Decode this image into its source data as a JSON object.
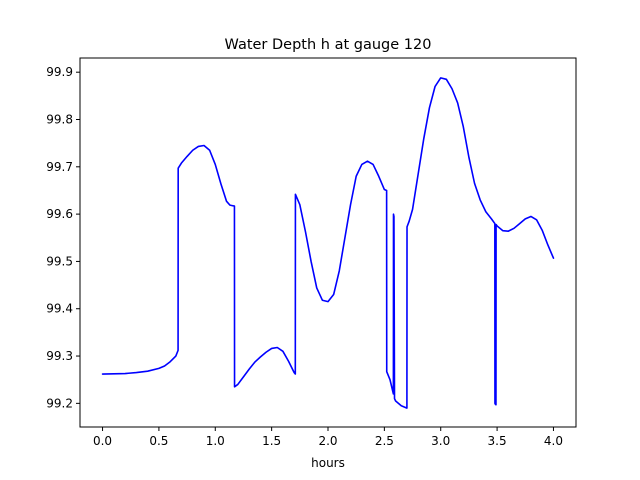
{
  "chart_data": {
    "type": "line",
    "title": "Water Depth h at gauge 120",
    "xlabel": "hours",
    "ylabel": "",
    "xlim": [
      -0.2,
      4.2
    ],
    "ylim": [
      99.15,
      99.93
    ],
    "xticks": [
      {
        "value": 0.0,
        "label": "0.0"
      },
      {
        "value": 0.5,
        "label": "0.5"
      },
      {
        "value": 1.0,
        "label": "1.0"
      },
      {
        "value": 1.5,
        "label": "1.5"
      },
      {
        "value": 2.0,
        "label": "2.0"
      },
      {
        "value": 2.5,
        "label": "2.5"
      },
      {
        "value": 3.0,
        "label": "3.0"
      },
      {
        "value": 3.5,
        "label": "3.5"
      },
      {
        "value": 4.0,
        "label": "4.0"
      }
    ],
    "yticks": [
      {
        "value": 99.2,
        "label": "99.2"
      },
      {
        "value": 99.3,
        "label": "99.3"
      },
      {
        "value": 99.4,
        "label": "99.4"
      },
      {
        "value": 99.5,
        "label": "99.5"
      },
      {
        "value": 99.6,
        "label": "99.6"
      },
      {
        "value": 99.7,
        "label": "99.7"
      },
      {
        "value": 99.8,
        "label": "99.8"
      },
      {
        "value": 99.9,
        "label": "99.9"
      }
    ],
    "grid": false,
    "legend": "none",
    "series": [
      {
        "color": "#0000ff",
        "x": [
          0.0,
          0.2,
          0.3,
          0.4,
          0.5,
          0.55,
          0.6,
          0.65,
          0.67,
          0.671,
          0.7,
          0.75,
          0.8,
          0.85,
          0.9,
          0.95,
          1.0,
          1.05,
          1.1,
          1.13,
          1.15,
          1.17,
          1.171,
          1.2,
          1.25,
          1.3,
          1.35,
          1.4,
          1.45,
          1.5,
          1.55,
          1.6,
          1.65,
          1.7,
          1.71,
          1.711,
          1.75,
          1.8,
          1.85,
          1.9,
          1.95,
          2.0,
          2.05,
          2.1,
          2.15,
          2.2,
          2.25,
          2.3,
          2.35,
          2.4,
          2.45,
          2.5,
          2.52,
          2.521,
          2.55,
          2.58,
          2.581,
          2.585,
          2.59,
          2.6,
          2.65,
          2.7,
          2.701,
          2.72,
          2.75,
          2.8,
          2.85,
          2.9,
          2.95,
          3.0,
          3.05,
          3.1,
          3.15,
          3.2,
          3.25,
          3.3,
          3.35,
          3.4,
          3.45,
          3.48,
          3.481,
          3.485,
          3.49,
          3.491,
          3.5,
          3.55,
          3.6,
          3.65,
          3.7,
          3.75,
          3.8,
          3.85,
          3.9,
          3.95,
          4.0
        ],
        "y": [
          99.262,
          99.263,
          99.265,
          99.268,
          99.274,
          99.279,
          99.288,
          99.3,
          99.312,
          99.697,
          99.708,
          99.722,
          99.735,
          99.743,
          99.745,
          99.735,
          99.705,
          99.664,
          99.627,
          99.619,
          99.618,
          99.617,
          99.235,
          99.24,
          99.256,
          99.272,
          99.287,
          99.298,
          99.308,
          99.316,
          99.318,
          99.31,
          99.289,
          99.265,
          99.262,
          99.642,
          99.62,
          99.563,
          99.5,
          99.444,
          99.418,
          99.415,
          99.43,
          99.48,
          99.55,
          99.62,
          99.68,
          99.705,
          99.712,
          99.705,
          99.68,
          99.652,
          99.65,
          99.267,
          99.25,
          99.22,
          99.6,
          99.595,
          99.21,
          99.205,
          99.195,
          99.19,
          99.573,
          99.585,
          99.61,
          99.685,
          99.76,
          99.825,
          99.87,
          99.888,
          99.885,
          99.865,
          99.835,
          99.785,
          99.72,
          99.665,
          99.63,
          99.605,
          99.59,
          99.58,
          99.2,
          99.198,
          99.197,
          99.578,
          99.575,
          99.565,
          99.564,
          99.57,
          99.58,
          99.59,
          99.595,
          99.588,
          99.566,
          99.535,
          99.507
        ]
      }
    ]
  }
}
